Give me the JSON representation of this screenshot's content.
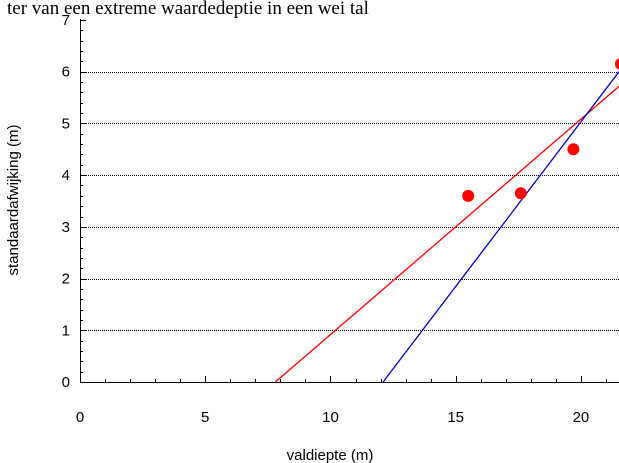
{
  "chart_data": {
    "type": "scatter",
    "title": "ter van een extreme waardedeptie in een wei tal",
    "xlabel": "valdiepte (m)",
    "ylabel": "standaardafwijking (m)",
    "xlim": [
      0,
      21.6
    ],
    "ylim": [
      0,
      7
    ],
    "xticks": [
      0,
      5,
      10,
      15,
      20
    ],
    "yticks": [
      0,
      1,
      2,
      3,
      4,
      5,
      6,
      7
    ],
    "grid": "horizontal dotted at y = 1..6",
    "points": {
      "color": "#ff0000",
      "x": [
        15.5,
        17.6,
        19.7,
        21.6
      ],
      "y": [
        3.6,
        3.65,
        4.5,
        6.15
      ]
    },
    "lines": [
      {
        "color": "#ff0000",
        "x": [
          7.8,
          21.6
        ],
        "y": [
          0,
          5.75
        ]
      },
      {
        "color": "#0000c0",
        "x": [
          12.1,
          21.6
        ],
        "y": [
          0,
          6.05
        ]
      }
    ]
  }
}
